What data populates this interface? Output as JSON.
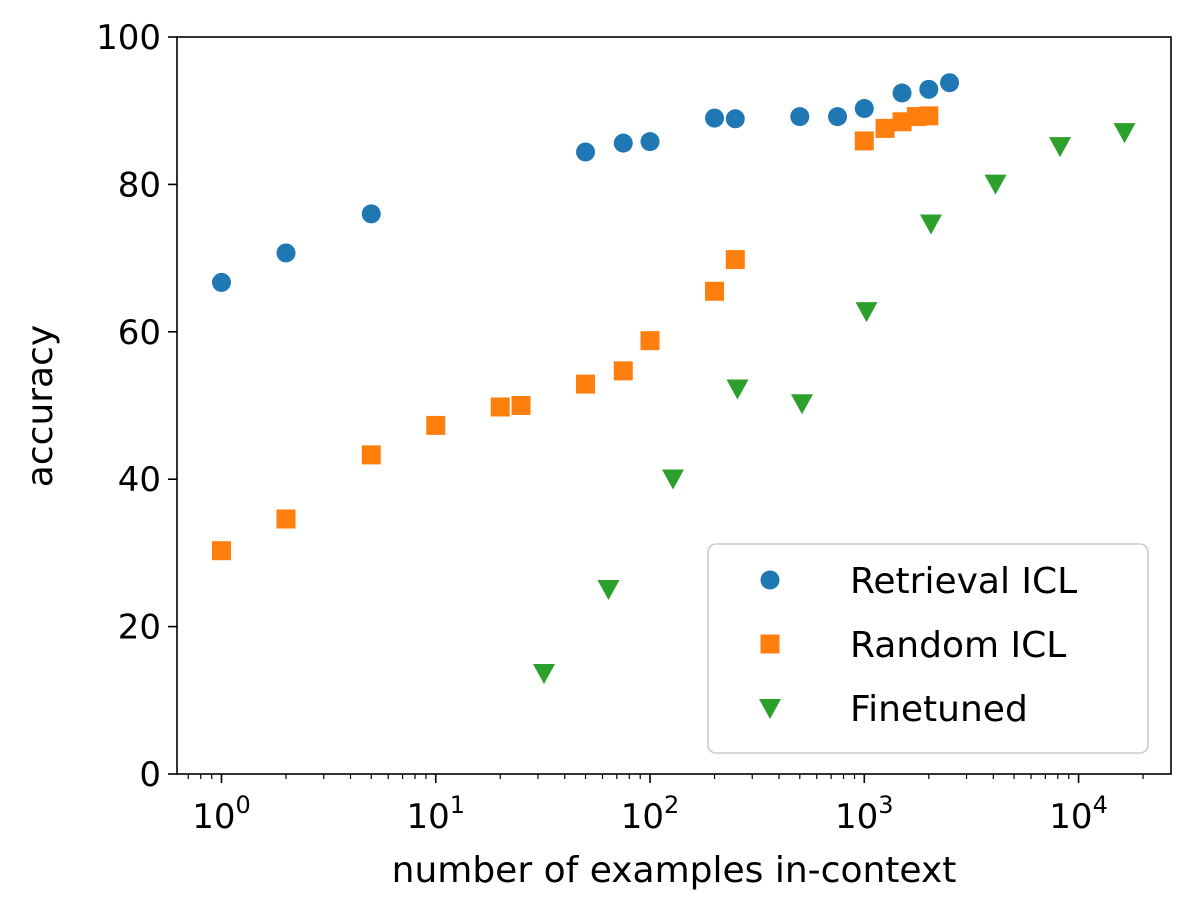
{
  "chart_data": {
    "type": "scatter",
    "xlabel": "number of examples in-context",
    "ylabel": "accuracy",
    "xscale": "log",
    "xlim": [
      0.62,
      27000
    ],
    "ylim": [
      0,
      100
    ],
    "grid": false,
    "legend_position": "lower-right",
    "y_ticks": [
      0,
      20,
      40,
      60,
      80,
      100
    ],
    "x_ticks": [
      {
        "value": 1,
        "base": "10",
        "exp": "0"
      },
      {
        "value": 10,
        "base": "10",
        "exp": "1"
      },
      {
        "value": 100,
        "base": "10",
        "exp": "2"
      },
      {
        "value": 1000,
        "base": "10",
        "exp": "3"
      },
      {
        "value": 10000,
        "base": "10",
        "exp": "4"
      }
    ],
    "series": [
      {
        "name": "Retrieval ICL",
        "marker": "circle",
        "color": "#1f77b4",
        "points": [
          [
            1,
            66.7
          ],
          [
            2,
            70.7
          ],
          [
            5,
            76.0
          ],
          [
            50,
            84.4
          ],
          [
            75,
            85.6
          ],
          [
            100,
            85.8
          ],
          [
            200,
            89.0
          ],
          [
            250,
            88.9
          ],
          [
            500,
            89.2
          ],
          [
            750,
            89.2
          ],
          [
            1000,
            90.3
          ],
          [
            1500,
            92.4
          ],
          [
            2000,
            92.9
          ],
          [
            2500,
            93.8
          ]
        ]
      },
      {
        "name": "Random ICL",
        "marker": "square",
        "color": "#ff7f0e",
        "points": [
          [
            1,
            30.3
          ],
          [
            2,
            34.6
          ],
          [
            5,
            43.3
          ],
          [
            10,
            47.3
          ],
          [
            20,
            49.8
          ],
          [
            25,
            50.0
          ],
          [
            50,
            52.9
          ],
          [
            75,
            54.7
          ],
          [
            100,
            58.8
          ],
          [
            200,
            65.5
          ],
          [
            250,
            69.8
          ],
          [
            1000,
            85.9
          ],
          [
            1250,
            87.6
          ],
          [
            1500,
            88.5
          ],
          [
            1750,
            89.2
          ],
          [
            2000,
            89.3
          ]
        ]
      },
      {
        "name": "Finetuned",
        "marker": "triangle-down",
        "color": "#2ca02c",
        "points": [
          [
            32,
            13.7
          ],
          [
            64,
            25.1
          ],
          [
            128,
            40.1
          ],
          [
            256,
            52.3
          ],
          [
            512,
            50.3
          ],
          [
            1024,
            62.8
          ],
          [
            2048,
            74.7
          ],
          [
            4096,
            80.1
          ],
          [
            8192,
            85.2
          ],
          [
            16384,
            87.1
          ]
        ]
      }
    ]
  }
}
